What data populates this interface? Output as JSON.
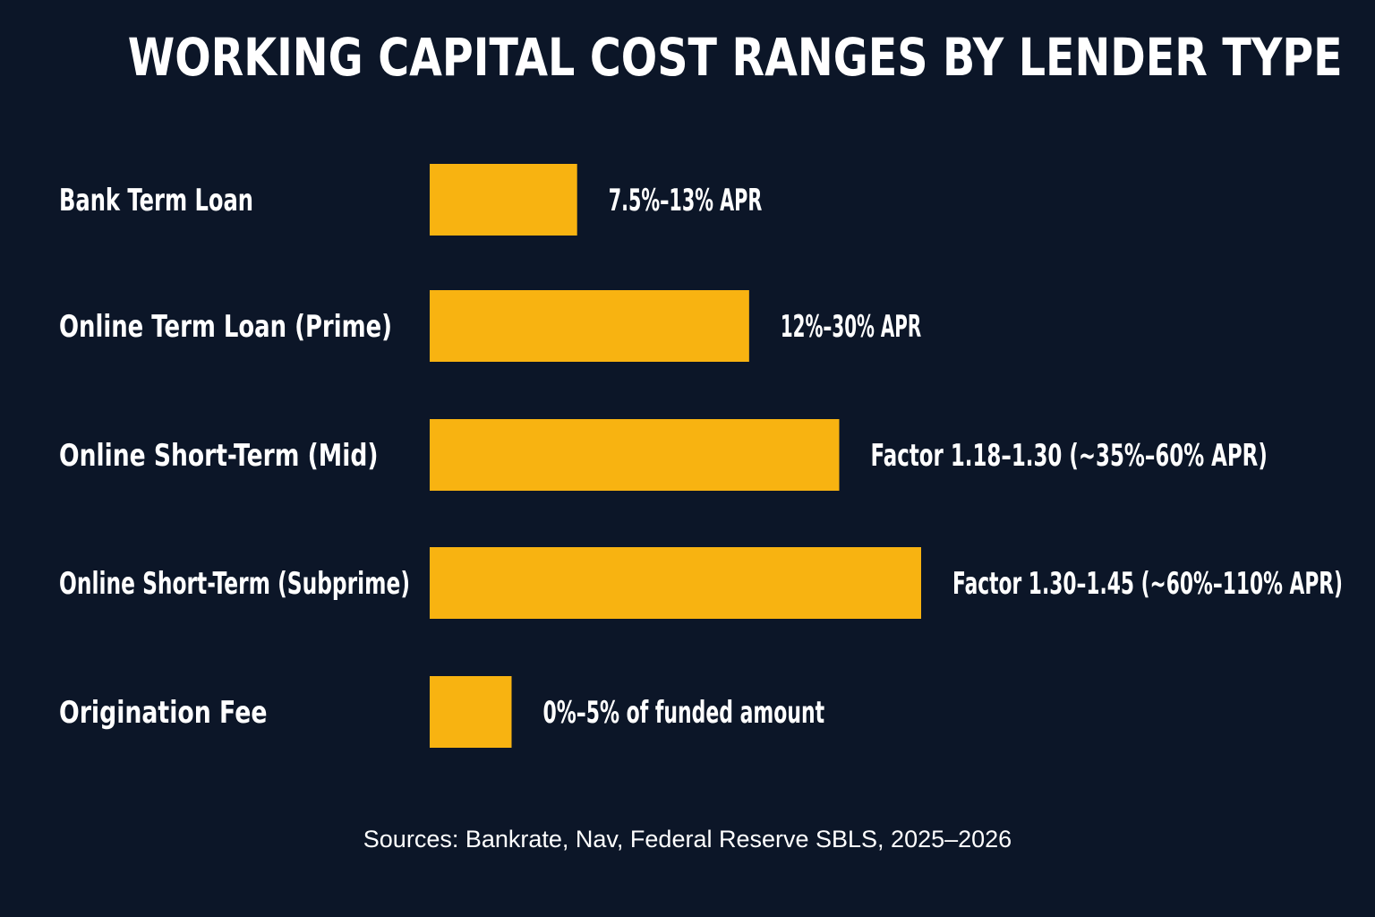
{
  "colors": {
    "background": "#0c1628",
    "bar": "#f8b311",
    "text": "#ffffff"
  },
  "chart_data": {
    "type": "bar",
    "orientation": "horizontal",
    "title": "WORKING CAPITAL COST RANGES BY LENDER TYPE",
    "categories": [
      "Bank Term Loan",
      "Online Term Loan (Prime)",
      "Online Short-Term (Mid)",
      "Online Short-Term (Subprime)",
      "Origination Fee"
    ],
    "values": [
      18,
      39,
      50,
      60,
      10
    ],
    "value_labels": [
      "7.5%–13% APR",
      "12%–30% APR",
      "Factor 1.18–1.30 (~35%–60% APR)",
      "Factor 1.30–1.45 (~60%–110% APR)",
      "0%–5% of funded amount"
    ],
    "xlim": [
      0,
      100
    ],
    "grid": false,
    "legend": "none",
    "source": "Sources: Bankrate, Nav, Federal Reserve SBLS, 2025–2026"
  }
}
